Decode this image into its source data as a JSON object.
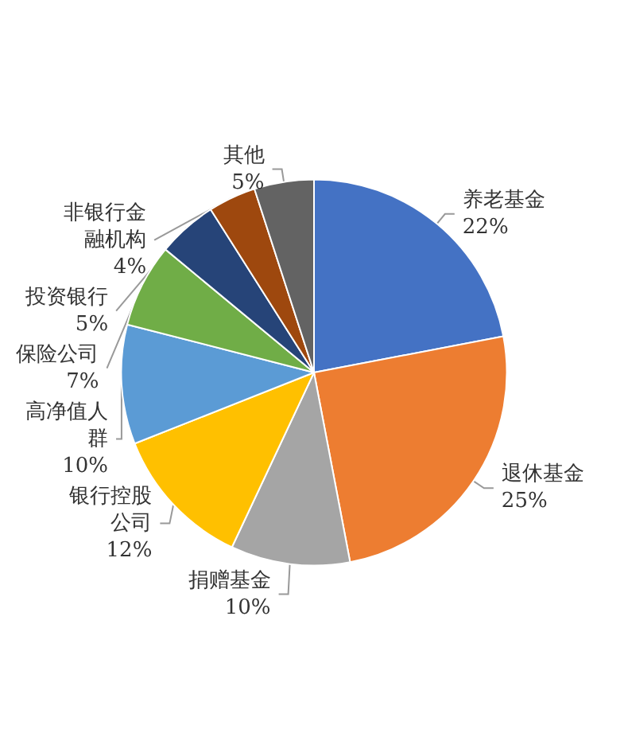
{
  "chart_data": {
    "type": "pie",
    "categories": [
      "养老基金",
      "退休基金",
      "捐赠基金",
      "银行控股公司",
      "高净值人群",
      "保险公司",
      "投资银行",
      "非银行金融机构",
      "其他"
    ],
    "values": [
      22,
      25,
      10,
      12,
      10,
      7,
      5,
      4,
      5
    ],
    "value_labels": [
      "22%",
      "25%",
      "10%",
      "12%",
      "10%",
      "7%",
      "5%",
      "4%",
      "5%"
    ],
    "colors": [
      "#4472c4",
      "#ed7d31",
      "#a5a5a5",
      "#ffc000",
      "#5b9bd5",
      "#70ad47",
      "#264478",
      "#9e480e",
      "#636363"
    ],
    "legend": false
  }
}
